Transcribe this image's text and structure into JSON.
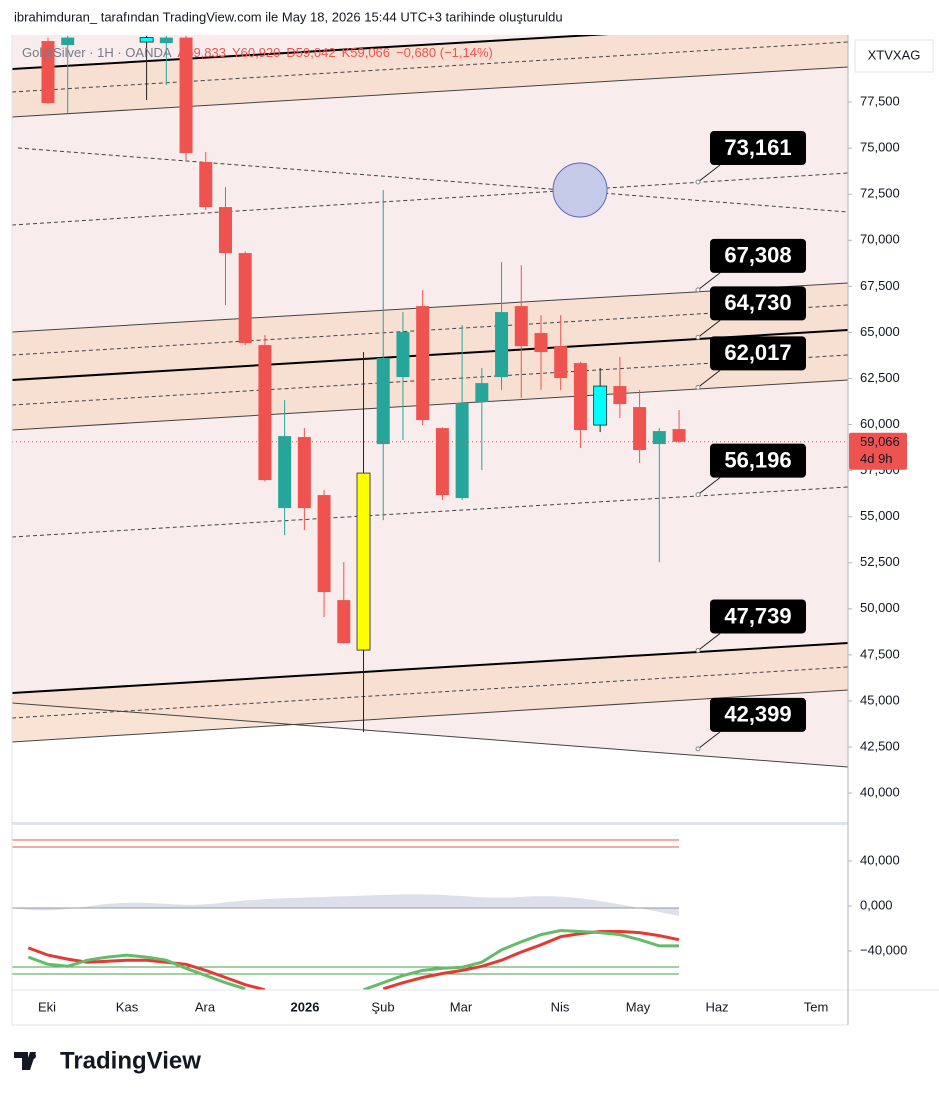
{
  "header": {
    "caption": "ibrahimduran_ tarafından TradingView.com ile May 18, 2026 15:44 UTC+3 tarihinde oluşturuldu"
  },
  "chart_data": [
    {
      "type": "candlestick",
      "symbol": "XTVXAG",
      "legend": {
        "symbol": "Gold/Silver · 1H · OANDA",
        "ohlc": [
          "A59,833",
          "Y60,920",
          "D59,042",
          "K59,066"
        ],
        "change": "−0,680 (−1,14%)"
      },
      "x_labels": [
        "Eki",
        "Kas",
        "Ara",
        "2026",
        "Şub",
        "Mar",
        "Nis",
        "May",
        "Haz",
        "Tem"
      ],
      "open": [
        null,
        80810,
        80590,
        null,
        null,
        null,
        80756,
        80700,
        81000,
        74244,
        71802,
        69305,
        64313,
        55467,
        59320,
        56172,
        50473,
        47760,
        58940,
        62576,
        66429,
        59808,
        56009,
        61219,
        62576,
        66429,
        64964,
        64258,
        63336,
        59971,
        62087,
        60947,
        58940,
        59754
      ],
      "high": [
        null,
        81000,
        81100,
        null,
        null,
        null,
        81100,
        81100,
        81100,
        74787,
        72887,
        69400,
        64855,
        61328,
        59808,
        56443,
        52536,
        63933,
        72724,
        66103,
        67297,
        59850,
        65398,
        63064,
        68817,
        68654,
        65940,
        65940,
        63400,
        63064,
        63661,
        61870,
        59808,
        60785
      ],
      "low": [
        null,
        77400,
        76903,
        null,
        null,
        null,
        77608,
        78420,
        74352,
        71639,
        66483,
        64313,
        56900,
        54001,
        54272,
        49551,
        48100,
        43310,
        54815,
        59157,
        59971,
        55901,
        55901,
        57529,
        61870,
        61436,
        61870,
        61870,
        58722,
        59591,
        60351,
        57908,
        52536,
        59000
      ],
      "close": [
        null,
        77446,
        81000,
        null,
        null,
        null,
        81000,
        81000,
        74732,
        71802,
        69305,
        64421,
        56986,
        59374,
        55467,
        50908,
        48140,
        57365,
        63607,
        65018,
        60242,
        56172,
        61165,
        62250,
        66103,
        64258,
        63933,
        62522,
        59699,
        62087,
        61111,
        58614,
        59645,
        59066
      ],
      "up_color": "#26a69a",
      "down_color": "#ef5350",
      "candle_colors": [
        null,
        null,
        null,
        null,
        null,
        null,
        "#00ffff",
        null,
        null,
        null,
        null,
        null,
        null,
        null,
        null,
        null,
        null,
        "#ffff00",
        null,
        null,
        null,
        null,
        null,
        null,
        null,
        null,
        null,
        null,
        null,
        "#00ffff",
        null,
        null,
        null,
        null
      ],
      "ylim": [
        38430,
        81140
      ],
      "yticks": [
        {
          "value": 40000,
          "label": "40,000"
        },
        {
          "value": 42500,
          "label": "42,500"
        },
        {
          "value": 45000,
          "label": "45,000"
        },
        {
          "value": 47500,
          "label": "47,500"
        },
        {
          "value": 50000,
          "label": "50,000"
        },
        {
          "value": 52500,
          "label": "52,500"
        },
        {
          "value": 55000,
          "label": "55,000"
        },
        {
          "value": 57500,
          "label": "57,500"
        },
        {
          "value": 60000,
          "label": "60,000"
        },
        {
          "value": 62500,
          "label": "62,500"
        },
        {
          "value": 65000,
          "label": "65,000"
        },
        {
          "value": 67500,
          "label": "67,500"
        },
        {
          "value": 70000,
          "label": "70,000"
        },
        {
          "value": 72500,
          "label": "72,500"
        },
        {
          "value": 75000,
          "label": "75,000"
        },
        {
          "value": 77500,
          "label": "77,500"
        }
      ],
      "grid": false,
      "last_price": {
        "value": 59066,
        "label": "59,066",
        "countdown": "4d 9h"
      },
      "annotations": [
        {
          "value": 73161,
          "label": "73,161"
        },
        {
          "value": 67308,
          "label": "67,308"
        },
        {
          "value": 64730,
          "label": "64,730"
        },
        {
          "value": 62017,
          "label": "62,017"
        },
        {
          "value": 56196,
          "label": "56,196"
        },
        {
          "value": 47739,
          "label": "47,739"
        },
        {
          "value": 42399,
          "label": "42,399"
        }
      ]
    },
    {
      "type": "line",
      "series": [
        {
          "color": "#e53935",
          "values": [
            -37270,
            -43630,
            -47270,
            -50000,
            -49090,
            -48180,
            -48180,
            -50000,
            -51810,
            -57270,
            -63630,
            -70000,
            -74540,
            null,
            null,
            null,
            null,
            null,
            -73630,
            -68180,
            -63630,
            -60000,
            -57270,
            -53630,
            -48180,
            -40900,
            -34540,
            -27270,
            -24540,
            -22730,
            -22730,
            -23630,
            -26360,
            -30000
          ]
        },
        {
          "color": "#66bb6a",
          "values": [
            -45450,
            -51810,
            -53630,
            -48180,
            -45450,
            -43630,
            -45450,
            -48180,
            -55450,
            -61810,
            -68180,
            -73630,
            null,
            null,
            null,
            null,
            null,
            -74540,
            -68180,
            -61810,
            -57270,
            -55450,
            -54540,
            -50000,
            -39090,
            -31810,
            -25450,
            -21820,
            -22730,
            -23630,
            -25450,
            -30000,
            -35450,
            -35450
          ]
        }
      ],
      "ylim": [
        -74700,
        72000
      ],
      "yticks": [
        {
          "value": 40000,
          "label": "40,000"
        },
        {
          "value": 0,
          "label": "0,000"
        },
        {
          "value": -40000,
          "label": "−40,000"
        }
      ]
    }
  ],
  "footer": {
    "brand": "TradingView"
  }
}
